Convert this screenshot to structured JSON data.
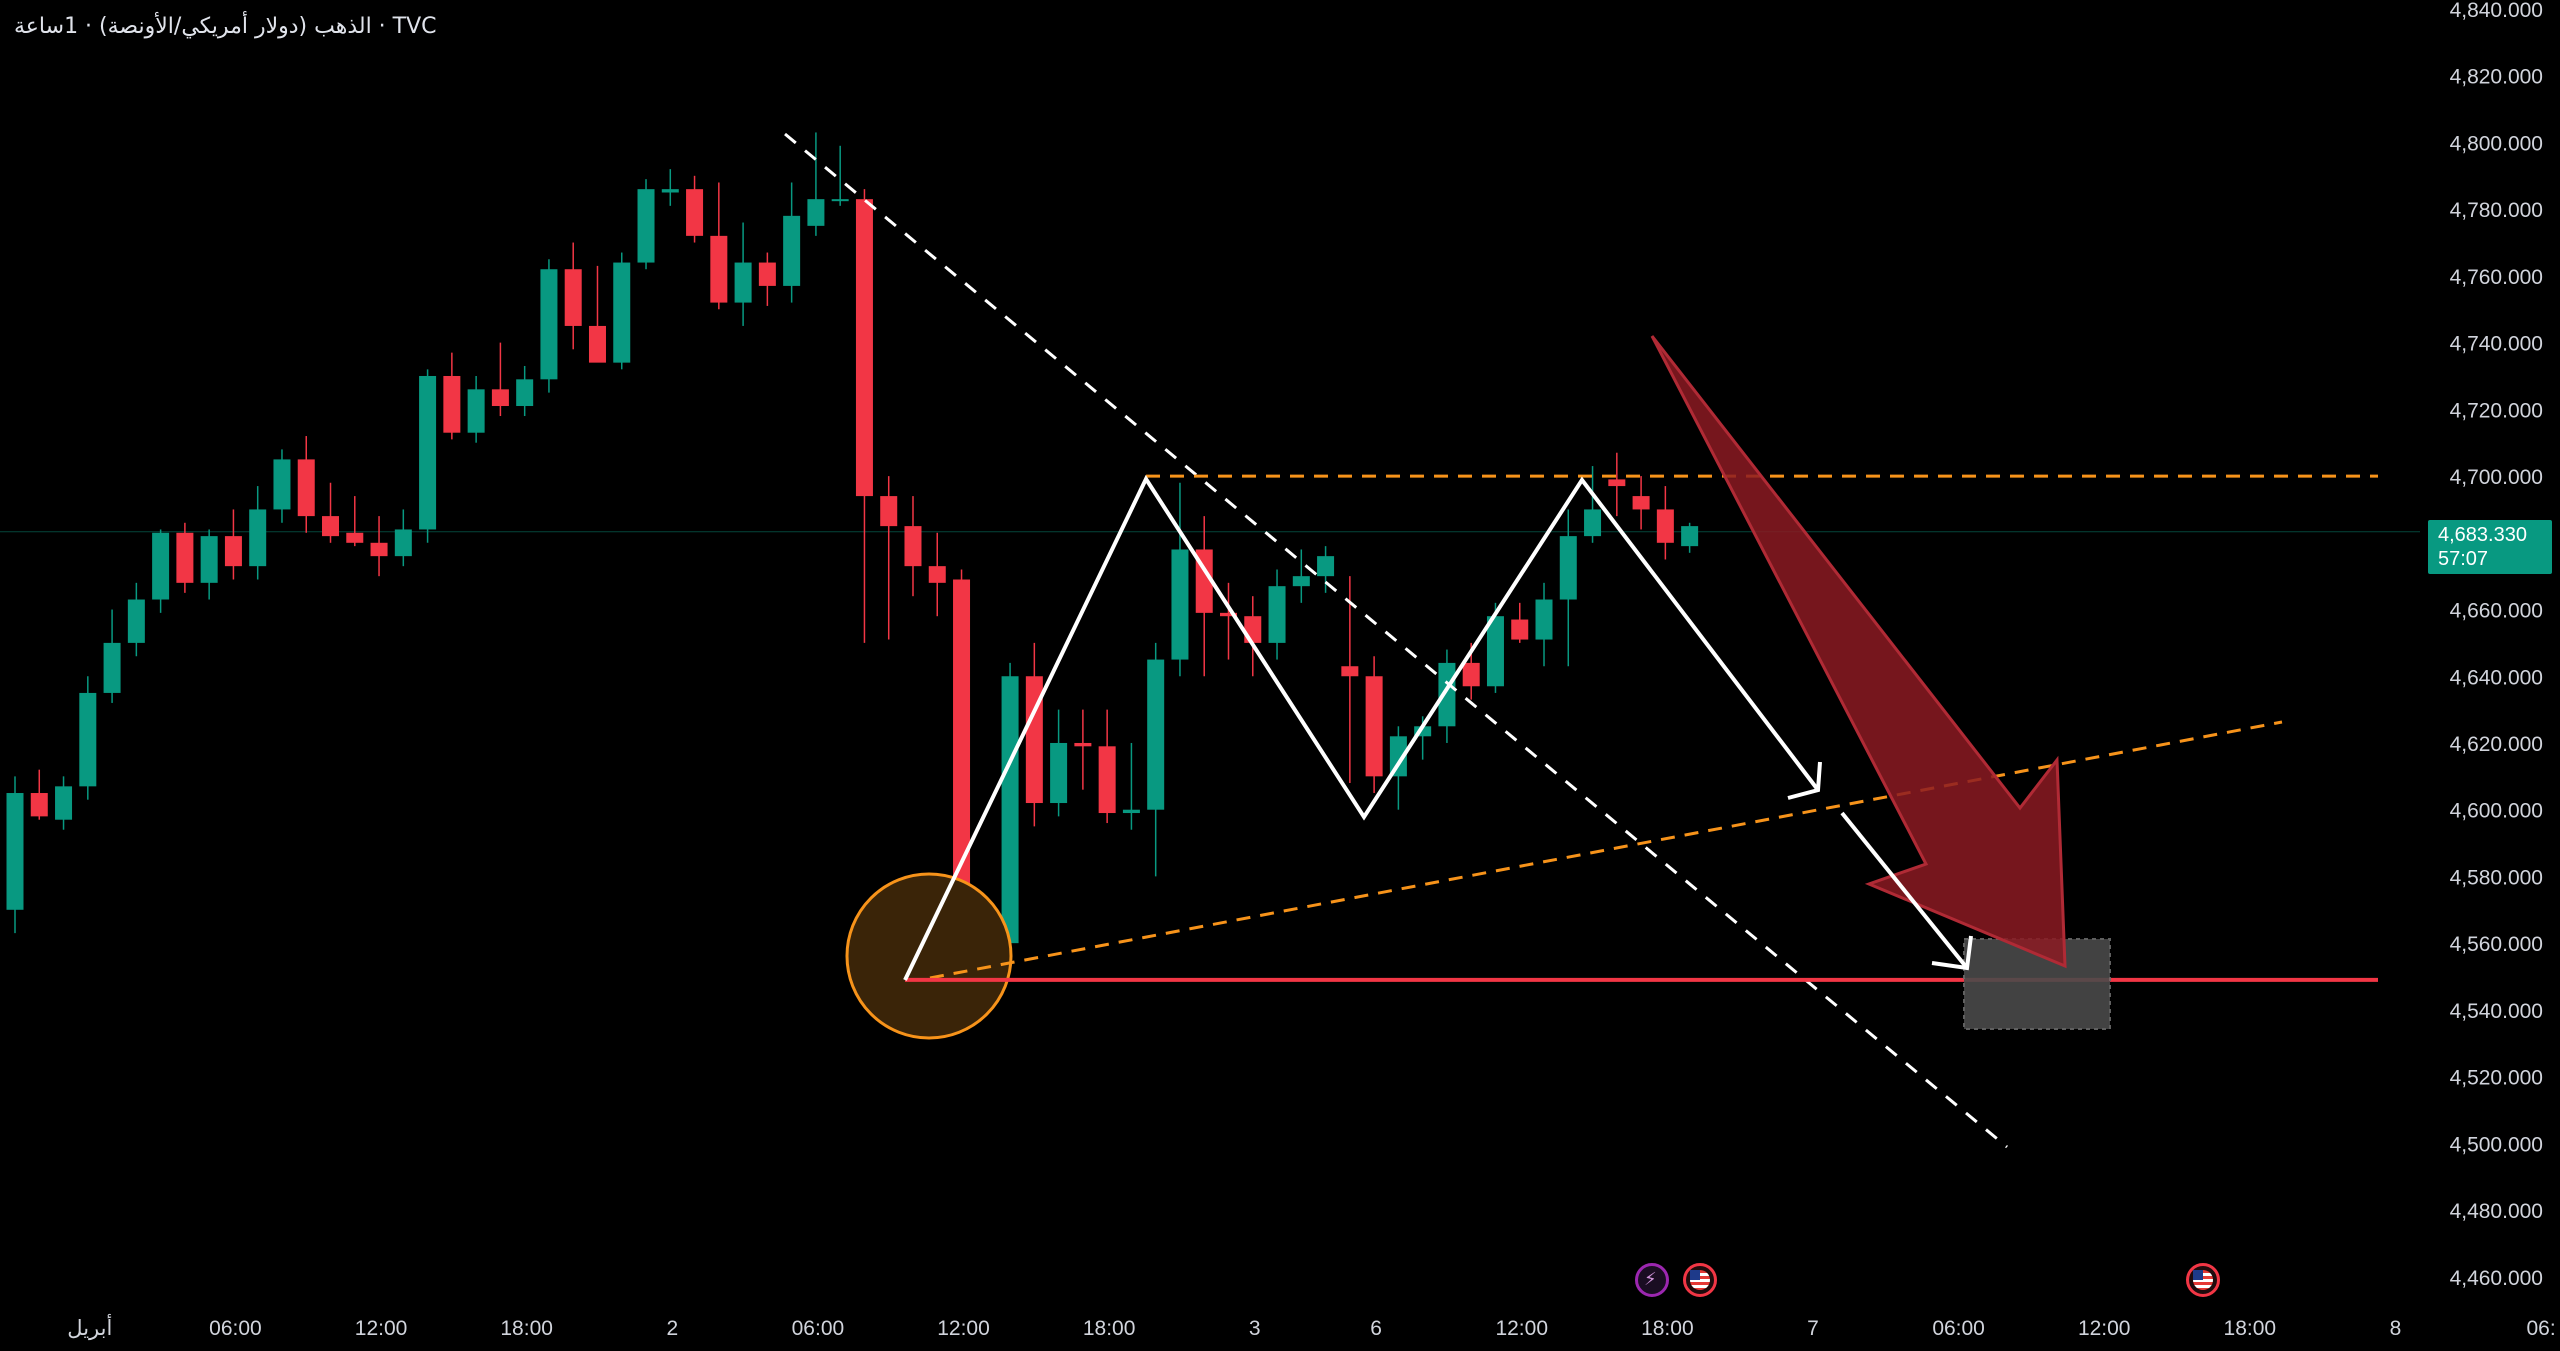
{
  "symbol": {
    "title": "TVC · الذهب (دولار أمريكي/الأونصة) · 1ساعة"
  },
  "price_badge": {
    "price": "4,683.330",
    "countdown": "57:07"
  },
  "colors": {
    "background": "#000000",
    "bull": "#089981",
    "bear": "#f23645",
    "support_line": "#f23645",
    "dashed_orange": "#f7931a",
    "pattern_white": "#ffffff",
    "big_arrow": "#8b1a22",
    "target_zone": "#4a4a4a",
    "highlight_circle": "#f7931a"
  },
  "events": [
    {
      "icon": "lightning-icon"
    },
    {
      "icon": "us-flag-icon"
    },
    {
      "icon": "us-flag-icon"
    }
  ],
  "chart_data": {
    "type": "candlestick",
    "title": "",
    "xlabel": "",
    "ylabel": "",
    "ylim": [
      4450,
      4840
    ],
    "yticks": [
      "4,460.000",
      "4,480.000",
      "4,500.000",
      "4,520.000",
      "4,540.000",
      "4,560.000",
      "4,580.000",
      "4,600.000",
      "4,620.000",
      "4,640.000",
      "4,660.000",
      "4,680.000",
      "4,700.000",
      "4,720.000",
      "4,740.000",
      "4,760.000",
      "4,780.000",
      "4,800.000",
      "4,820.000",
      "4,840.000"
    ],
    "ytick_values": [
      4460,
      4480,
      4500,
      4520,
      4540,
      4560,
      4580,
      4600,
      4620,
      4640,
      4660,
      4680,
      4700,
      4720,
      4740,
      4760,
      4780,
      4800,
      4820,
      4840
    ],
    "xticks": [
      {
        "label": "أبريل",
        "i": 3
      },
      {
        "label": "06:00",
        "i": 9
      },
      {
        "label": "12:00",
        "i": 15
      },
      {
        "label": "18:00",
        "i": 21
      },
      {
        "label": "2",
        "i": 27
      },
      {
        "label": "06:00",
        "i": 33
      },
      {
        "label": "12:00",
        "i": 39
      },
      {
        "label": "18:00",
        "i": 45
      },
      {
        "label": "3",
        "i": 51
      },
      {
        "label": "6",
        "i": 56
      },
      {
        "label": "12:00",
        "i": 62
      },
      {
        "label": "18:00",
        "i": 68
      },
      {
        "label": "7",
        "i": 74
      },
      {
        "label": "06:00",
        "i": 80
      },
      {
        "label": "12:00",
        "i": 86
      },
      {
        "label": "18:00",
        "i": 92
      },
      {
        "label": "8",
        "i": 98
      },
      {
        "label": "06:",
        "i": 104
      }
    ],
    "grid": false,
    "current_price": 4683.33,
    "candles": [
      {
        "o": 4570,
        "h": 4610,
        "l": 4563,
        "c": 4605
      },
      {
        "o": 4605,
        "h": 4612,
        "l": 4597,
        "c": 4598
      },
      {
        "o": 4597,
        "h": 4610,
        "l": 4594,
        "c": 4607
      },
      {
        "o": 4607,
        "h": 4640,
        "l": 4603,
        "c": 4635
      },
      {
        "o": 4635,
        "h": 4660,
        "l": 4632,
        "c": 4650
      },
      {
        "o": 4650,
        "h": 4668,
        "l": 4646,
        "c": 4663
      },
      {
        "o": 4663,
        "h": 4684,
        "l": 4659,
        "c": 4683
      },
      {
        "o": 4683,
        "h": 4686,
        "l": 4665,
        "c": 4668
      },
      {
        "o": 4668,
        "h": 4684,
        "l": 4663,
        "c": 4682
      },
      {
        "o": 4682,
        "h": 4690,
        "l": 4669,
        "c": 4673
      },
      {
        "o": 4673,
        "h": 4697,
        "l": 4669,
        "c": 4690
      },
      {
        "o": 4690,
        "h": 4708,
        "l": 4686,
        "c": 4705
      },
      {
        "o": 4705,
        "h": 4712,
        "l": 4683,
        "c": 4688
      },
      {
        "o": 4688,
        "h": 4698,
        "l": 4680,
        "c": 4682
      },
      {
        "o": 4683,
        "h": 4694,
        "l": 4679,
        "c": 4680
      },
      {
        "o": 4680,
        "h": 4688,
        "l": 4670,
        "c": 4676
      },
      {
        "o": 4676,
        "h": 4690,
        "l": 4673,
        "c": 4684
      },
      {
        "o": 4684,
        "h": 4732,
        "l": 4680,
        "c": 4730
      },
      {
        "o": 4730,
        "h": 4737,
        "l": 4711,
        "c": 4713
      },
      {
        "o": 4713,
        "h": 4730,
        "l": 4710,
        "c": 4726
      },
      {
        "o": 4726,
        "h": 4740,
        "l": 4718,
        "c": 4721
      },
      {
        "o": 4721,
        "h": 4733,
        "l": 4718,
        "c": 4729
      },
      {
        "o": 4729,
        "h": 4765,
        "l": 4725,
        "c": 4762
      },
      {
        "o": 4762,
        "h": 4770,
        "l": 4738,
        "c": 4745
      },
      {
        "o": 4745,
        "h": 4763,
        "l": 4737,
        "c": 4734
      },
      {
        "o": 4734,
        "h": 4767,
        "l": 4732,
        "c": 4764
      },
      {
        "o": 4764,
        "h": 4789,
        "l": 4762,
        "c": 4786
      },
      {
        "o": 4785,
        "h": 4792,
        "l": 4781,
        "c": 4786
      },
      {
        "o": 4786,
        "h": 4790,
        "l": 4770,
        "c": 4772
      },
      {
        "o": 4772,
        "h": 4788,
        "l": 4750,
        "c": 4752
      },
      {
        "o": 4752,
        "h": 4776,
        "l": 4745,
        "c": 4764
      },
      {
        "o": 4764,
        "h": 4767,
        "l": 4751,
        "c": 4757
      },
      {
        "o": 4757,
        "h": 4788,
        "l": 4752,
        "c": 4778
      },
      {
        "o": 4775,
        "h": 4803,
        "l": 4772,
        "c": 4783
      },
      {
        "o": 4783,
        "h": 4799,
        "l": 4781,
        "c": 4783
      },
      {
        "o": 4783,
        "h": 4786,
        "l": 4650,
        "c": 4694
      },
      {
        "o": 4694,
        "h": 4700,
        "l": 4651,
        "c": 4685
      },
      {
        "o": 4685,
        "h": 4694,
        "l": 4664,
        "c": 4673
      },
      {
        "o": 4673,
        "h": 4683,
        "l": 4658,
        "c": 4668
      },
      {
        "o": 4669,
        "h": 4672,
        "l": 4540,
        "c": 4545
      },
      {
        "o": 4550,
        "h": 4566,
        "l": 4546,
        "c": 4555
      },
      {
        "o": 4560,
        "h": 4644,
        "l": 4558,
        "c": 4640
      },
      {
        "o": 4640,
        "h": 4650,
        "l": 4595,
        "c": 4602
      },
      {
        "o": 4602,
        "h": 4630,
        "l": 4598,
        "c": 4620
      },
      {
        "o": 4620,
        "h": 4630,
        "l": 4606,
        "c": 4619
      },
      {
        "o": 4619,
        "h": 4630,
        "l": 4596,
        "c": 4599
      },
      {
        "o": 4599,
        "h": 4620,
        "l": 4594,
        "c": 4600
      },
      {
        "o": 4600,
        "h": 4650,
        "l": 4580,
        "c": 4645
      },
      {
        "o": 4645,
        "h": 4698,
        "l": 4640,
        "c": 4678
      },
      {
        "o": 4678,
        "h": 4688,
        "l": 4640,
        "c": 4659
      },
      {
        "o": 4659,
        "h": 4668,
        "l": 4645,
        "c": 4658
      },
      {
        "o": 4658,
        "h": 4664,
        "l": 4640,
        "c": 4650
      },
      {
        "o": 4650,
        "h": 4672,
        "l": 4645,
        "c": 4667
      },
      {
        "o": 4667,
        "h": 4678,
        "l": 4662,
        "c": 4670
      },
      {
        "o": 4670,
        "h": 4679,
        "l": 4665,
        "c": 4676
      },
      {
        "o": 4643,
        "h": 4670,
        "l": 4608,
        "c": 4640
      },
      {
        "o": 4640,
        "h": 4646,
        "l": 4605,
        "c": 4610
      },
      {
        "o": 4610,
        "h": 4625,
        "l": 4600,
        "c": 4622
      },
      {
        "o": 4622,
        "h": 4628,
        "l": 4615,
        "c": 4625
      },
      {
        "o": 4625,
        "h": 4648,
        "l": 4620,
        "c": 4644
      },
      {
        "o": 4644,
        "h": 4650,
        "l": 4633,
        "c": 4637
      },
      {
        "o": 4637,
        "h": 4662,
        "l": 4635,
        "c": 4658
      },
      {
        "o": 4657,
        "h": 4662,
        "l": 4650,
        "c": 4651
      },
      {
        "o": 4651,
        "h": 4668,
        "l": 4643,
        "c": 4663
      },
      {
        "o": 4663,
        "h": 4690,
        "l": 4643,
        "c": 4682
      },
      {
        "o": 4682,
        "h": 4703,
        "l": 4680,
        "c": 4690
      },
      {
        "o": 4699,
        "h": 4707,
        "l": 4688,
        "c": 4697
      },
      {
        "o": 4694,
        "h": 4700,
        "l": 4684,
        "c": 4690
      },
      {
        "o": 4690,
        "h": 4697,
        "l": 4675,
        "c": 4680
      },
      {
        "o": 4679,
        "h": 4686,
        "l": 4677,
        "c": 4685
      }
    ]
  }
}
